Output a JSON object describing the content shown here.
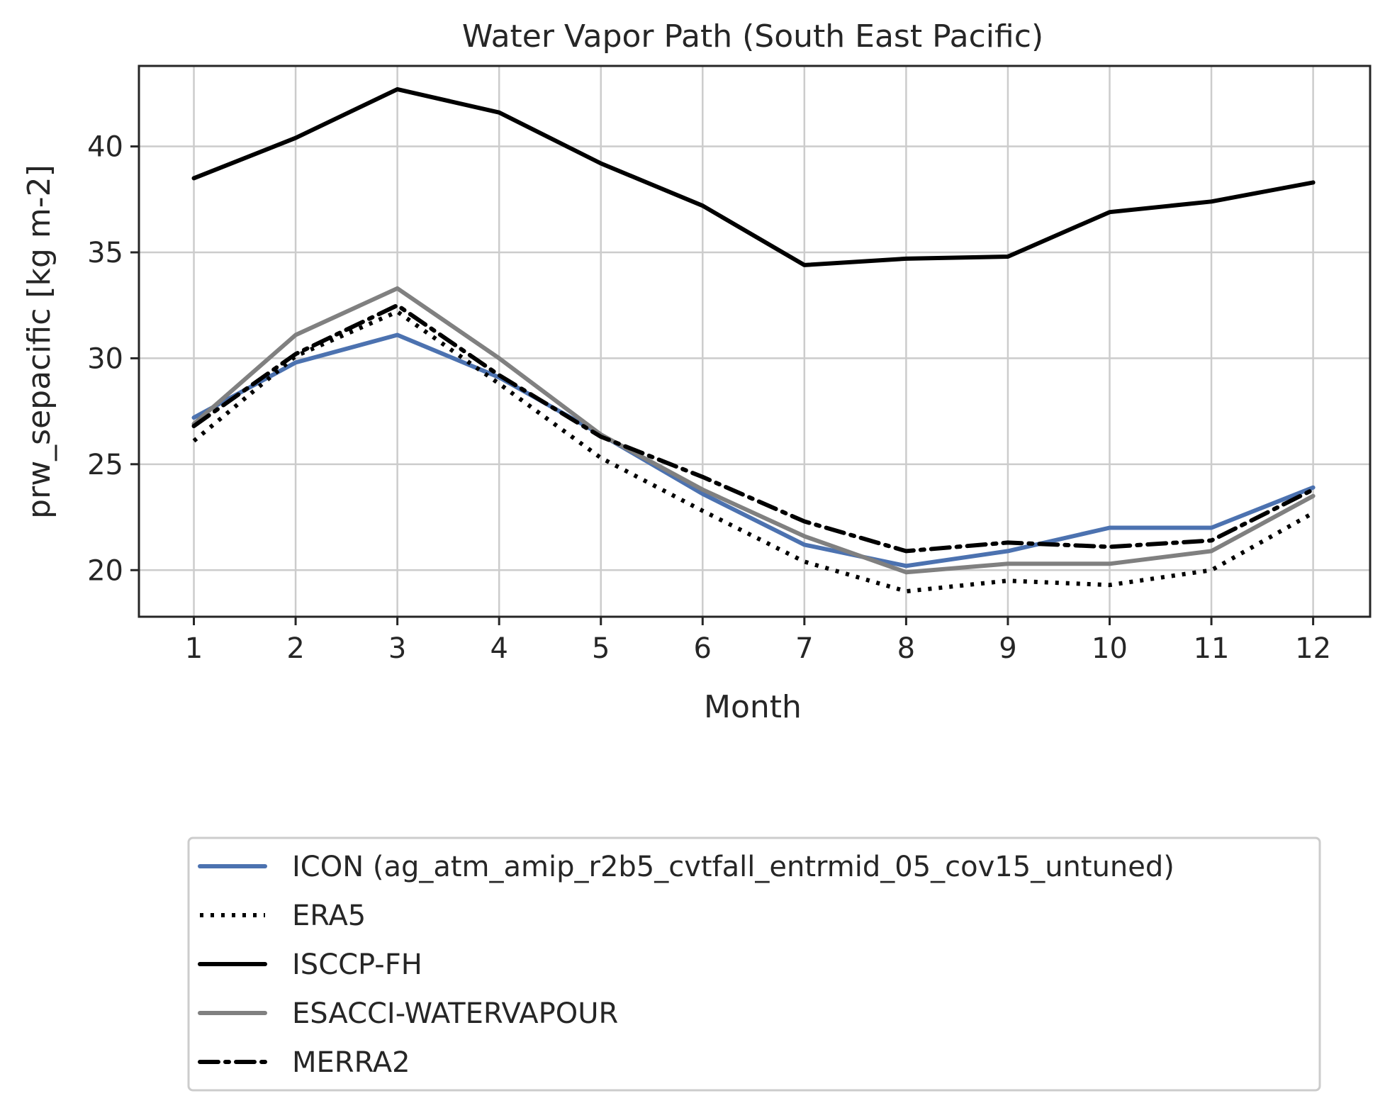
{
  "chart_data": {
    "type": "line",
    "title": "Water Vapor Path (South East Pacific)",
    "xlabel": "Month",
    "ylabel": "prw_sepacific [kg m-2]",
    "x": [
      1,
      2,
      3,
      4,
      5,
      6,
      7,
      8,
      9,
      10,
      11,
      12
    ],
    "x_ticks": [
      "1",
      "2",
      "3",
      "4",
      "5",
      "6",
      "7",
      "8",
      "9",
      "10",
      "11",
      "12"
    ],
    "xlim": [
      0.46,
      12.56
    ],
    "ylim": [
      17.8,
      43.8
    ],
    "y_ticks": [
      20,
      25,
      30,
      35,
      40
    ],
    "grid": true,
    "legend_position": "below plot",
    "series": [
      {
        "name": "ICON (ag_atm_amip_r2b5_cvtfall_entrmid_05_cov15_untuned)",
        "color": "#4c72b0",
        "style": "solid",
        "values": [
          27.2,
          29.8,
          31.1,
          29.1,
          26.4,
          23.6,
          21.2,
          20.2,
          20.9,
          22.0,
          22.0,
          23.9
        ]
      },
      {
        "name": "ERA5",
        "color": "#000000",
        "style": "dotted",
        "values": [
          26.1,
          30.1,
          32.2,
          28.8,
          25.3,
          22.8,
          20.4,
          19.0,
          19.5,
          19.3,
          20.0,
          22.7
        ]
      },
      {
        "name": "ISCCP-FH",
        "color": "#000000",
        "style": "solid",
        "values": [
          38.5,
          40.4,
          42.7,
          41.6,
          39.2,
          37.2,
          34.4,
          34.7,
          34.8,
          36.9,
          37.4,
          38.3
        ]
      },
      {
        "name": "ESACCI-WATERVAPOUR",
        "color": "#808080",
        "style": "solid",
        "values": [
          26.9,
          31.1,
          33.3,
          30.0,
          26.4,
          23.8,
          21.6,
          19.9,
          20.3,
          20.3,
          20.9,
          23.5
        ]
      },
      {
        "name": "MERRA2",
        "color": "#000000",
        "style": "dashdot",
        "values": [
          26.8,
          30.2,
          32.5,
          29.2,
          26.3,
          24.4,
          22.3,
          20.9,
          21.3,
          21.1,
          21.4,
          23.8
        ]
      }
    ]
  }
}
